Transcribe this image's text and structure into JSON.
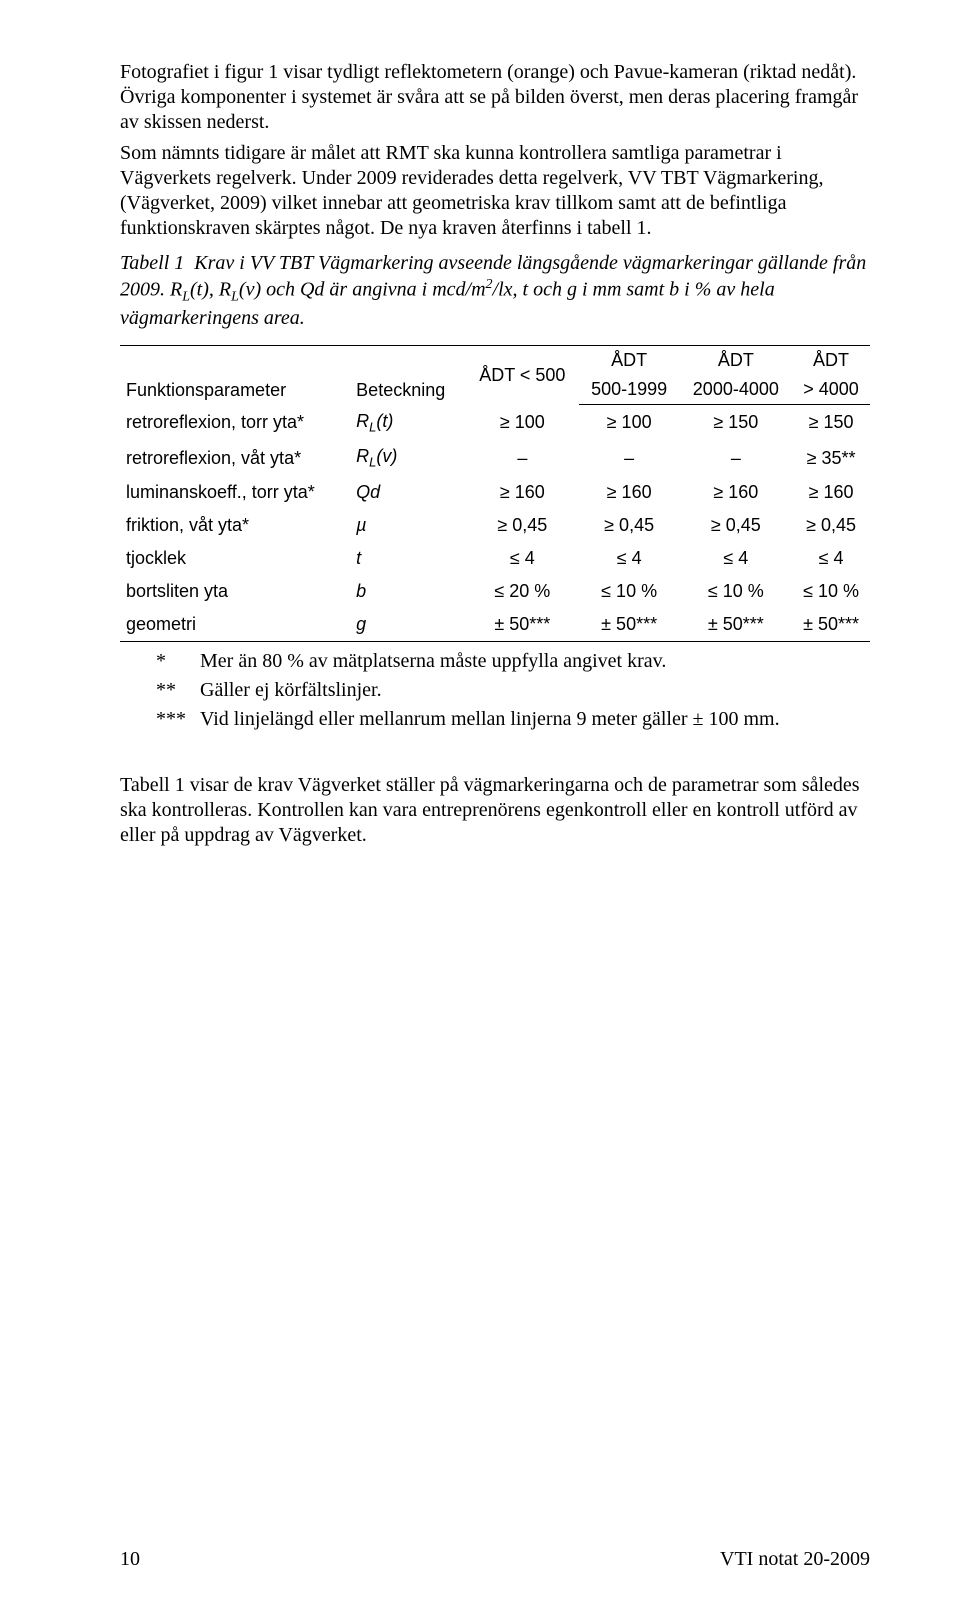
{
  "paragraphs": {
    "p1": "Fotografiet i figur 1 visar tydligt reflektometern (orange) och Pavue-kameran (riktad nedåt). Övriga komponenter i systemet är svåra att se på bilden överst, men deras placering framgår av skissen nederst.",
    "p2": "Som nämnts tidigare är målet att RMT ska kunna kontrollera samtliga parametrar i Vägverkets regelverk. Under 2009 reviderades detta regelverk, VV TBT Vägmarkering, (Vägverket, 2009) vilket innebar att geometriska krav tillkom samt att de befintliga funktionskraven skärptes något. De nya kraven återfinns i tabell 1.",
    "tabell_caption_html": "Tabell 1 &nbsp;Krav i VV TBT Vägmarkering avseende längsgående vägmarkeringar gällande från 2009. R<sub>L</sub>(t), R<sub>L</sub>(v) och Qd är angivna i mcd/m<sup>2</sup>/lx, t och g i mm samt b i % av hela vägmarkeringens area.",
    "after": "Tabell 1 visar de krav Vägverket ställer på vägmarkeringarna och de parametrar som således ska kontrolleras. Kontrollen kan vara entreprenörens egenkontroll eller en kontroll utförd av eller på uppdrag av Vägverket."
  },
  "table": {
    "columns": {
      "param": "Funktionsparameter",
      "bet": "Beteckning",
      "c1": "ÅDT < 500",
      "c2_top": "ÅDT",
      "c2_bot": "500-1999",
      "c3_top": "ÅDT",
      "c3_bot": "2000-4000",
      "c4_top": "ÅDT",
      "c4_bot": "> 4000"
    },
    "rows": [
      {
        "param": "retroreflexion, torr yta*",
        "bet_html": "R<sub>L</sub>(t)",
        "c1": "≥ 100",
        "c2": "≥ 100",
        "c3": "≥ 150",
        "c4": "≥ 150"
      },
      {
        "param": "retroreflexion, våt yta*",
        "bet_html": "R<sub>L</sub>(v)",
        "c1": "–",
        "c2": "–",
        "c3": "–",
        "c4": "≥ 35**"
      },
      {
        "param": "luminanskoeff., torr yta*",
        "bet_html": "Qd",
        "c1": "≥ 160",
        "c2": "≥ 160",
        "c3": "≥ 160",
        "c4": "≥ 160"
      },
      {
        "param": "friktion, våt yta*",
        "bet_html": "µ",
        "c1": "≥ 0,45",
        "c2": "≥ 0,45",
        "c3": "≥ 0,45",
        "c4": "≥ 0,45"
      },
      {
        "param": "tjocklek",
        "bet_html": "t",
        "c1": "≤ 4",
        "c2": "≤ 4",
        "c3": "≤ 4",
        "c4": "≤ 4"
      },
      {
        "param": "bortsliten yta",
        "bet_html": "b",
        "c1": "≤ 20 %",
        "c2": "≤ 10 %",
        "c3": "≤ 10 %",
        "c4": "≤ 10 %"
      },
      {
        "param": "geometri",
        "bet_html": "g",
        "c1": "± 50***",
        "c2": "± 50***",
        "c3": "± 50***",
        "c4": "± 50***"
      }
    ]
  },
  "footnotes": {
    "f1_mark": "*",
    "f1_text": "Mer än 80 % av mätplatserna måste uppfylla angivet krav.",
    "f2_mark": "**",
    "f2_text": "Gäller ej körfältslinjer.",
    "f3_mark": "***",
    "f3_text": "Vid linjelängd eller mellanrum mellan linjerna 9 meter gäller ± 100 mm."
  },
  "footer": {
    "page": "10",
    "doc": "VTI notat 20-2009"
  }
}
